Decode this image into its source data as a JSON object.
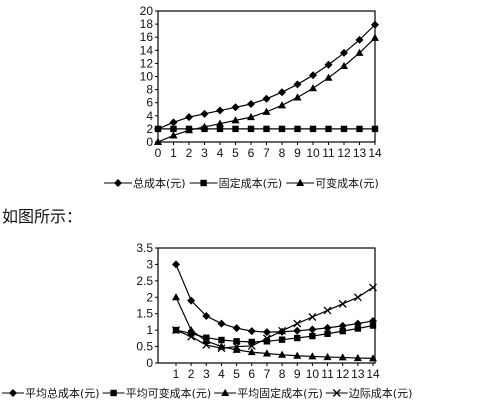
{
  "caption": "如图所示：",
  "chart_data": [
    {
      "type": "line",
      "title": "",
      "xlabel": "",
      "ylabel": "",
      "categories": [
        0,
        1,
        2,
        3,
        4,
        5,
        6,
        7,
        8,
        9,
        10,
        11,
        12,
        13,
        14
      ],
      "ylim": [
        0,
        20
      ],
      "yticks": [
        0,
        2,
        4,
        6,
        8,
        10,
        12,
        14,
        16,
        18,
        20
      ],
      "grid": false,
      "legend_position": "bottom",
      "series": [
        {
          "name": "总成本(元)",
          "marker": "diamond",
          "values": [
            2,
            3,
            3.8,
            4.3,
            4.8,
            5.3,
            5.8,
            6.6,
            7.6,
            8.8,
            10.2,
            11.8,
            13.6,
            15.6,
            17.9
          ]
        },
        {
          "name": "固定成本(元)",
          "marker": "square",
          "values": [
            2,
            2,
            2,
            2,
            2,
            2,
            2,
            2,
            2,
            2,
            2,
            2,
            2,
            2,
            2
          ]
        },
        {
          "name": "可变成本(元)",
          "marker": "triangle",
          "values": [
            0,
            1,
            1.8,
            2.3,
            2.8,
            3.3,
            3.8,
            4.6,
            5.6,
            6.8,
            8.2,
            9.8,
            11.6,
            13.6,
            15.9
          ]
        }
      ]
    },
    {
      "type": "line",
      "title": "",
      "xlabel": "",
      "ylabel": "",
      "categories": [
        1,
        2,
        3,
        4,
        5,
        6,
        7,
        8,
        9,
        10,
        11,
        12,
        13,
        14
      ],
      "ylim": [
        0,
        3.5
      ],
      "yticks": [
        0,
        0.5,
        1,
        1.5,
        2,
        2.5,
        3,
        3.5
      ],
      "ytick_labels": [
        "0",
        "0.5",
        "1",
        "1.5",
        "2",
        "2.5",
        "3",
        "3.5"
      ],
      "grid": false,
      "legend_position": "bottom",
      "series": [
        {
          "name": "平均总成本(元)",
          "marker": "diamond",
          "values": [
            3.0,
            1.9,
            1.43,
            1.2,
            1.06,
            0.97,
            0.94,
            0.95,
            0.98,
            1.02,
            1.07,
            1.13,
            1.2,
            1.28
          ]
        },
        {
          "name": "平均可变成本(元)",
          "marker": "square",
          "values": [
            1.0,
            0.9,
            0.77,
            0.7,
            0.66,
            0.64,
            0.66,
            0.71,
            0.76,
            0.82,
            0.89,
            0.97,
            1.05,
            1.14
          ]
        },
        {
          "name": "平均固定成本(元)",
          "marker": "triangle",
          "values": [
            2.0,
            1.0,
            0.67,
            0.5,
            0.4,
            0.33,
            0.29,
            0.25,
            0.22,
            0.2,
            0.18,
            0.17,
            0.15,
            0.14
          ]
        },
        {
          "name": "边际成本(元)",
          "marker": "x",
          "values": [
            1.0,
            0.8,
            0.55,
            0.45,
            0.5,
            0.52,
            0.75,
            0.98,
            1.2,
            1.4,
            1.6,
            1.8,
            2.0,
            2.3
          ]
        }
      ]
    }
  ]
}
